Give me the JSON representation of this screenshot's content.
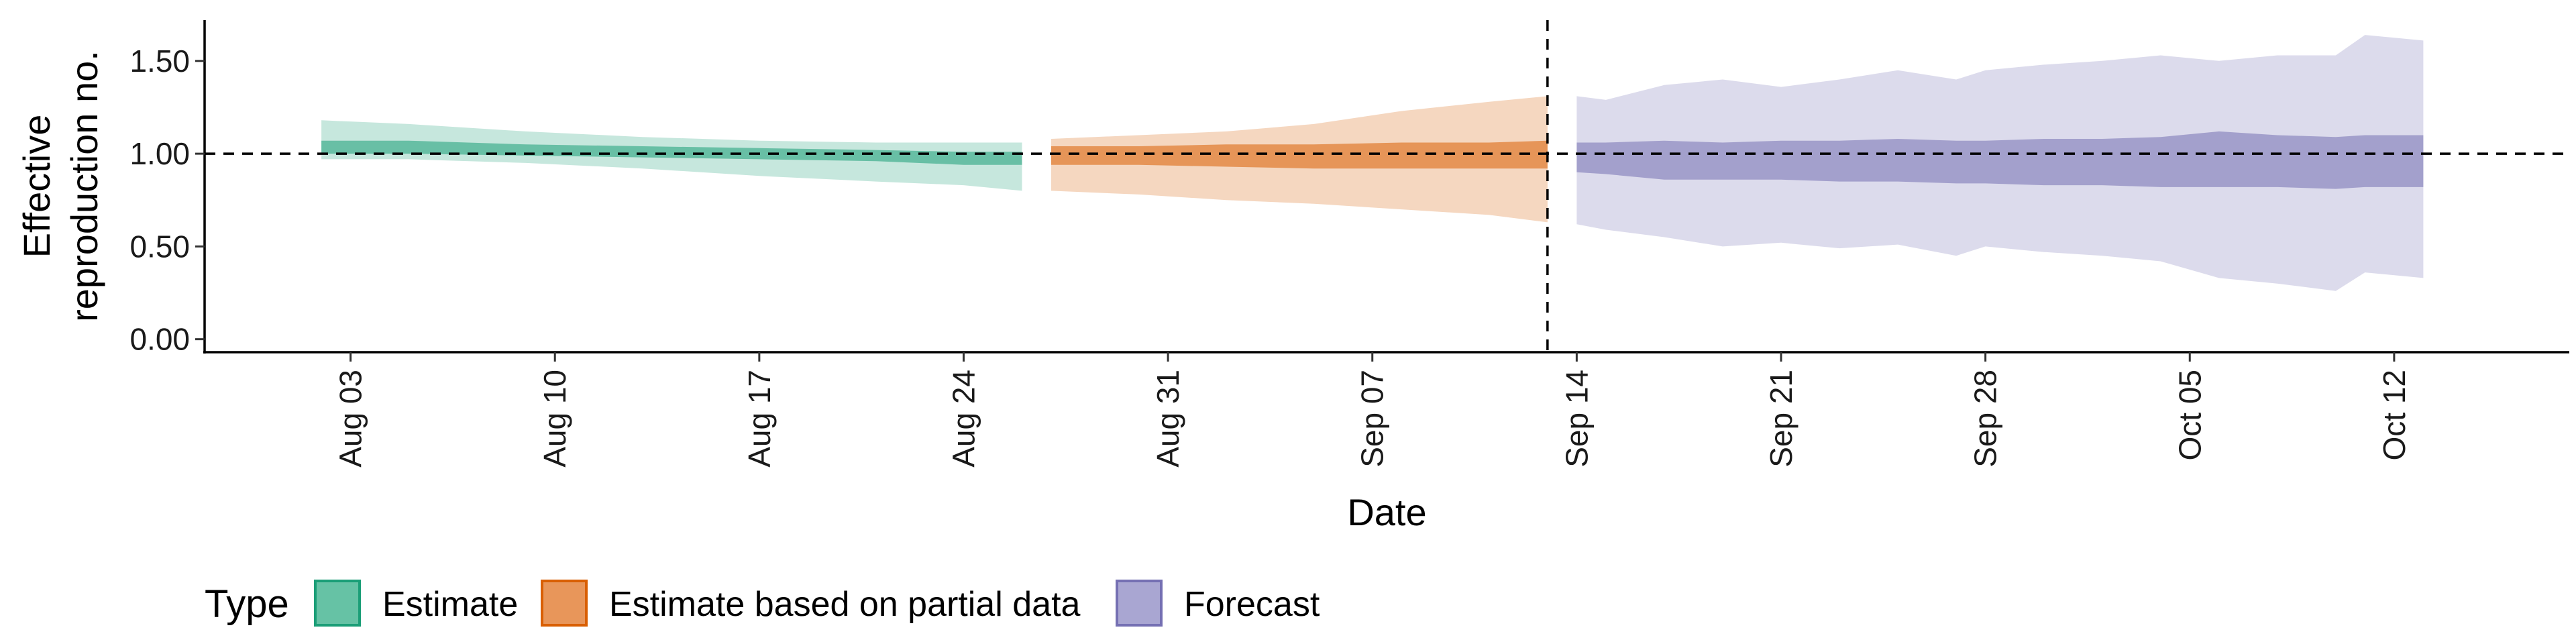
{
  "chart_data": {
    "type": "area",
    "xlabel": "Date",
    "ylabel_lines": [
      "Effective",
      "reproduction no."
    ],
    "ylim": [
      -0.07,
      1.72
    ],
    "xlim": [
      "2020-07-29",
      "2020-10-18"
    ],
    "y_ticks": [
      0.0,
      0.5,
      1.0,
      1.5
    ],
    "y_tick_labels": [
      "0.00",
      "0.50",
      "1.00",
      "1.50"
    ],
    "x_ticks": [
      "2020-08-03",
      "2020-08-10",
      "2020-08-17",
      "2020-08-24",
      "2020-08-31",
      "2020-09-07",
      "2020-09-14",
      "2020-09-21",
      "2020-09-28",
      "2020-10-05",
      "2020-10-12"
    ],
    "x_tick_labels": [
      "Aug 03",
      "Aug 10",
      "Aug 17",
      "Aug 24",
      "Aug 31",
      "Sep 07",
      "Sep 14",
      "Sep 21",
      "Sep 28",
      "Oct 05",
      "Oct 12"
    ],
    "reference_line": {
      "y": 1.0,
      "style": "dashed"
    },
    "vertical_line": {
      "x": "2020-09-13",
      "style": "dashed"
    },
    "legend": {
      "title": "Type",
      "position": "bottom-left",
      "items": [
        {
          "label": "Estimate",
          "fill": "#66c2a5",
          "border": "#1b9e77"
        },
        {
          "label": "Estimate based on partial data",
          "fill": "#e8965a",
          "border": "#d95f02"
        },
        {
          "label": "Forecast",
          "fill": "#a9a6d2",
          "border": "#7570b3"
        }
      ]
    },
    "series": [
      {
        "name": "Estimate",
        "color": "#1b9e77",
        "x": [
          "2020-08-02",
          "2020-08-05",
          "2020-08-09",
          "2020-08-13",
          "2020-08-17",
          "2020-08-21",
          "2020-08-24",
          "2020-08-26"
        ],
        "lower90": [
          0.97,
          0.97,
          0.95,
          0.92,
          0.88,
          0.85,
          0.83,
          0.8
        ],
        "upper90": [
          1.18,
          1.16,
          1.12,
          1.09,
          1.07,
          1.06,
          1.06,
          1.06
        ],
        "lower50": [
          1.0,
          1.0,
          0.99,
          0.98,
          0.97,
          0.96,
          0.94,
          0.94
        ],
        "upper50": [
          1.07,
          1.07,
          1.05,
          1.04,
          1.03,
          1.02,
          1.01,
          1.01
        ]
      },
      {
        "name": "Estimate based on partial data",
        "color": "#d95f02",
        "x": [
          "2020-08-27",
          "2020-08-30",
          "2020-09-02",
          "2020-09-05",
          "2020-09-08",
          "2020-09-11",
          "2020-09-13"
        ],
        "lower90": [
          0.8,
          0.78,
          0.75,
          0.73,
          0.7,
          0.67,
          0.63
        ],
        "upper90": [
          1.08,
          1.1,
          1.12,
          1.16,
          1.23,
          1.28,
          1.31
        ],
        "lower50": [
          0.94,
          0.94,
          0.93,
          0.92,
          0.92,
          0.92,
          0.92
        ],
        "upper50": [
          1.04,
          1.04,
          1.05,
          1.05,
          1.06,
          1.06,
          1.07
        ]
      },
      {
        "name": "Forecast",
        "color": "#7570b3",
        "x": [
          "2020-09-14",
          "2020-09-15",
          "2020-09-17",
          "2020-09-19",
          "2020-09-21",
          "2020-09-23",
          "2020-09-25",
          "2020-09-27",
          "2020-09-28",
          "2020-09-30",
          "2020-10-02",
          "2020-10-04",
          "2020-10-06",
          "2020-10-08",
          "2020-10-10",
          "2020-10-11",
          "2020-10-13"
        ],
        "lower90": [
          0.62,
          0.59,
          0.55,
          0.5,
          0.52,
          0.49,
          0.51,
          0.45,
          0.5,
          0.47,
          0.45,
          0.42,
          0.33,
          0.3,
          0.26,
          0.36,
          0.33
        ],
        "upper90": [
          1.31,
          1.29,
          1.37,
          1.4,
          1.36,
          1.4,
          1.45,
          1.4,
          1.45,
          1.48,
          1.5,
          1.53,
          1.5,
          1.53,
          1.53,
          1.64,
          1.61
        ],
        "lower50": [
          0.9,
          0.89,
          0.86,
          0.86,
          0.86,
          0.85,
          0.85,
          0.84,
          0.84,
          0.83,
          0.83,
          0.82,
          0.82,
          0.82,
          0.81,
          0.82,
          0.82
        ],
        "upper50": [
          1.06,
          1.06,
          1.07,
          1.06,
          1.07,
          1.07,
          1.08,
          1.07,
          1.07,
          1.08,
          1.08,
          1.09,
          1.12,
          1.1,
          1.09,
          1.1,
          1.1
        ]
      }
    ]
  }
}
